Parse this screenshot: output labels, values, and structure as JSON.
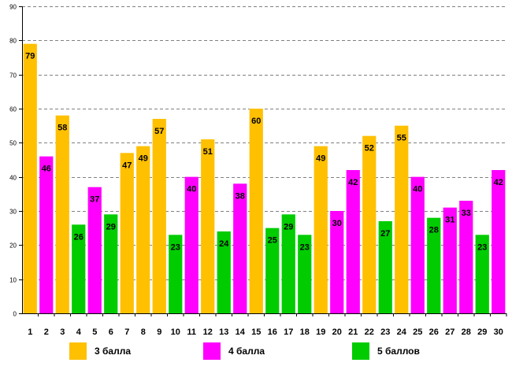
{
  "chart_data": {
    "type": "bar",
    "title": "",
    "xlabel": "",
    "ylabel": "",
    "ylim": [
      0,
      90
    ],
    "yticks": [
      0,
      10,
      20,
      30,
      40,
      50,
      60,
      70,
      80,
      90
    ],
    "grid": true,
    "categories": [
      "1",
      "2",
      "3",
      "4",
      "5",
      "6",
      "7",
      "8",
      "9",
      "10",
      "11",
      "12",
      "13",
      "14",
      "15",
      "16",
      "17",
      "18",
      "19",
      "20",
      "21",
      "22",
      "23",
      "24",
      "25",
      "26",
      "27",
      "28",
      "29",
      "30"
    ],
    "values": [
      79,
      46,
      58,
      26,
      37,
      29,
      47,
      49,
      57,
      23,
      40,
      51,
      24,
      38,
      60,
      25,
      29,
      23,
      49,
      30,
      42,
      52,
      27,
      55,
      40,
      28,
      31,
      33,
      23,
      42
    ],
    "groups": [
      "3",
      "4",
      "3",
      "5",
      "4",
      "5",
      "3",
      "3",
      "3",
      "5",
      "4",
      "3",
      "5",
      "4",
      "3",
      "5",
      "5",
      "5",
      "3",
      "4",
      "4",
      "3",
      "5",
      "3",
      "4",
      "5",
      "4",
      "4",
      "5",
      "4"
    ],
    "legend": [
      {
        "key": "3",
        "label": "3 балла",
        "color": "#FFC000"
      },
      {
        "key": "4",
        "label": "4 балла",
        "color": "#FF00FF"
      },
      {
        "key": "5",
        "label": "5 баллов",
        "color": "#00CC00"
      }
    ]
  }
}
